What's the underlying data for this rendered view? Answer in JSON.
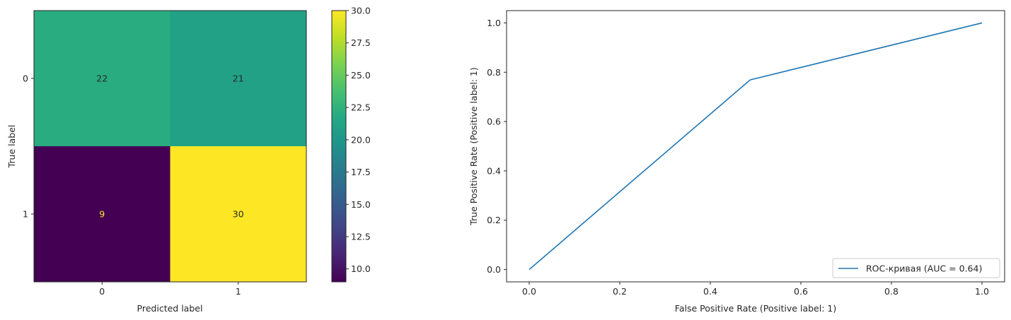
{
  "chart_data": [
    {
      "type": "heatmap",
      "matrix": [
        [
          22,
          21
        ],
        [
          9,
          30
        ]
      ],
      "x_tick_labels": [
        "0",
        "1"
      ],
      "y_tick_labels": [
        "0",
        "1"
      ],
      "xlabel": "Predicted label",
      "ylabel": "True label",
      "colormap": "viridis",
      "vmin": 9,
      "vmax": 30,
      "colorbar_ticks": [
        "10.0",
        "12.5",
        "15.0",
        "17.5",
        "20.0",
        "22.5",
        "25.0",
        "27.5",
        "30.0"
      ],
      "colorbar_tick_values": [
        10,
        12.5,
        15,
        17.5,
        20,
        22.5,
        25,
        27.5,
        30
      ],
      "text_colors": {
        "light": "#fde725",
        "dark": "#262626"
      }
    },
    {
      "type": "line",
      "series": [
        {
          "name": "ROC-кривая (AUC = 0.64)",
          "x": [
            0.0,
            0.488,
            1.0
          ],
          "y": [
            0.0,
            0.769,
            1.0
          ],
          "color": "#1f77b4"
        }
      ],
      "xlabel": "False Positive Rate (Positive label: 1)",
      "ylabel": "True Positive Rate (Positive label: 1)",
      "xlim": [
        -0.05,
        1.05
      ],
      "ylim": [
        -0.05,
        1.05
      ],
      "x_ticks": [
        "0.0",
        "0.2",
        "0.4",
        "0.6",
        "0.8",
        "1.0"
      ],
      "x_tick_values": [
        0,
        0.2,
        0.4,
        0.6,
        0.8,
        1.0
      ],
      "y_ticks": [
        "0.0",
        "0.2",
        "0.4",
        "0.6",
        "0.8",
        "1.0"
      ],
      "y_tick_values": [
        0,
        0.2,
        0.4,
        0.6,
        0.8,
        1.0
      ],
      "legend_position": "lower-right",
      "grid": false
    }
  ]
}
